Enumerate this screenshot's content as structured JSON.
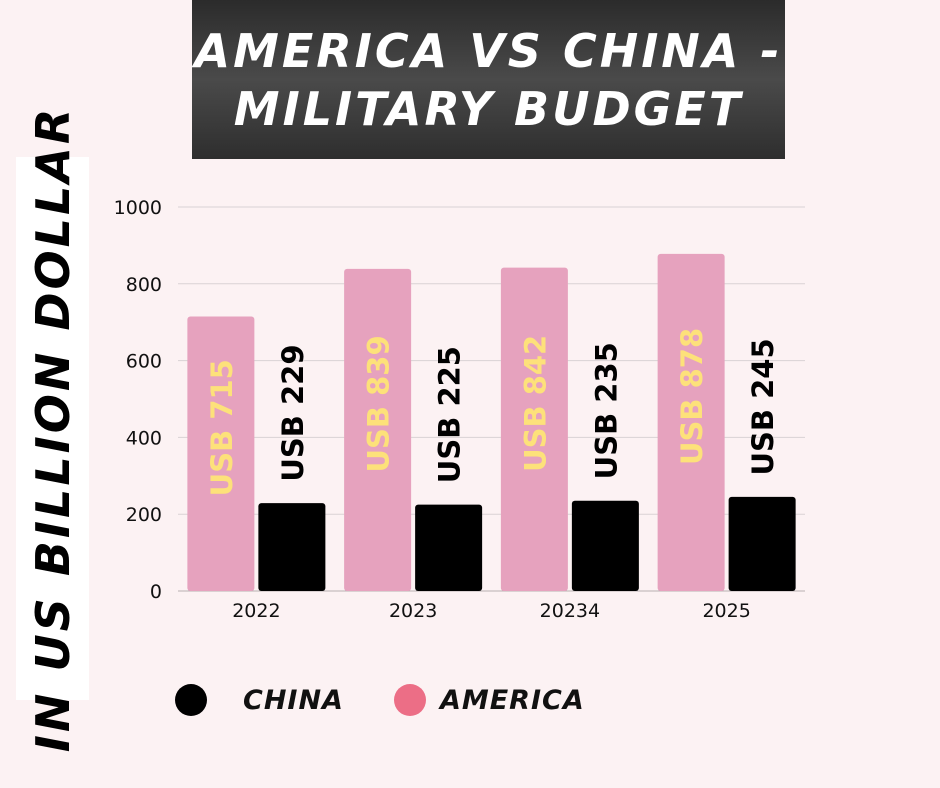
{
  "title": {
    "line1": "AMERICA VS CHINA -",
    "line2": "MILITARY BUDGET"
  },
  "ylabel": "IN US BILLION DOLLAR",
  "legend": {
    "china": "CHINA",
    "america": "AMERICA"
  },
  "colors": {
    "background": "#fcf2f3",
    "america": "#e6a2be",
    "china": "#000000",
    "america_label": "#fde17a",
    "legend_america": "#ec6e86",
    "grid": "#d9d2d4"
  },
  "chart_data": {
    "type": "bar",
    "categories": [
      "2022",
      "2023",
      "20234",
      "2025"
    ],
    "series": [
      {
        "name": "AMERICA",
        "values": [
          715,
          839,
          842,
          878
        ],
        "labels": [
          "USB 715",
          "USB 839",
          "USB 842",
          "USB 878"
        ]
      },
      {
        "name": "CHINA",
        "values": [
          229,
          225,
          235,
          245
        ],
        "labels": [
          "USB 229",
          "USB 225",
          "USB 235",
          "USB 245"
        ]
      }
    ],
    "yticks": [
      0,
      200,
      400,
      600,
      800,
      1000
    ],
    "ylim": [
      0,
      1000
    ],
    "title": "AMERICA VS CHINA - MILITARY BUDGET",
    "ylabel": "IN US BILLION DOLLAR",
    "xlabel": "",
    "grid": true,
    "legend_position": "bottom"
  }
}
